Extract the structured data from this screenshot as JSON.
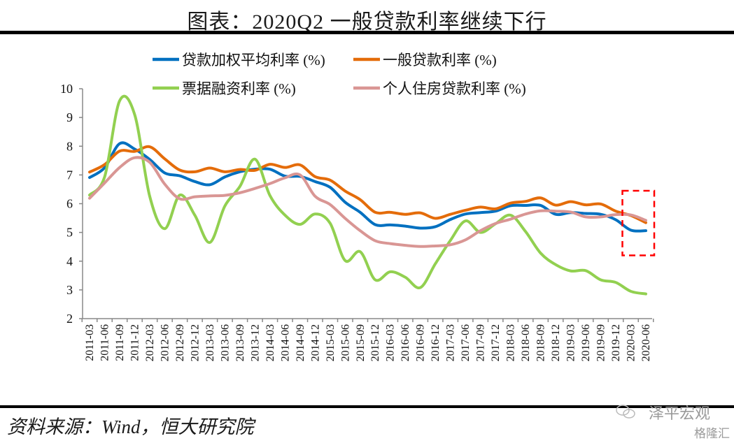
{
  "title": "图表：2020Q2 一般贷款利率继续下行",
  "source": "资料来源：Wind，恒大研究院",
  "watermark": {
    "brand": "泽平宏观",
    "sub": "格隆汇"
  },
  "highlight_box": {
    "from_category": "2020-03",
    "to_category": "2020-06",
    "y_range": [
      4.2,
      6.45
    ],
    "color": "#ff0000",
    "style": "dashed"
  },
  "chart_data": {
    "type": "line",
    "title": "图表：2020Q2 一般贷款利率继续下行",
    "xlabel": "",
    "ylabel": "",
    "ylim": [
      2,
      10
    ],
    "yticks": [
      2,
      3,
      4,
      5,
      6,
      7,
      8,
      9,
      10
    ],
    "grid": false,
    "legend_position": "top",
    "categories": [
      "2011-03",
      "2011-06",
      "2011-09",
      "2011-12",
      "2012-03",
      "2012-06",
      "2012-09",
      "2012-12",
      "2013-03",
      "2013-06",
      "2013-09",
      "2013-12",
      "2014-03",
      "2014-06",
      "2014-09",
      "2014-12",
      "2015-03",
      "2015-06",
      "2015-09",
      "2015-12",
      "2016-03",
      "2016-06",
      "2016-09",
      "2016-12",
      "2017-03",
      "2017-06",
      "2017-09",
      "2017-12",
      "2018-03",
      "2018-06",
      "2018-09",
      "2018-12",
      "2019-03",
      "2019-06",
      "2019-09",
      "2019-12",
      "2020-03",
      "2020-06"
    ],
    "series": [
      {
        "name": "贷款加权平均利率 (%)",
        "color": "#0070c0",
        "values": [
          6.91,
          7.25,
          8.09,
          7.9,
          7.54,
          7.07,
          6.97,
          6.77,
          6.66,
          6.93,
          7.11,
          7.2,
          7.2,
          6.96,
          6.95,
          6.77,
          6.57,
          6.05,
          5.7,
          5.27,
          5.26,
          5.22,
          5.15,
          5.2,
          5.45,
          5.64,
          5.69,
          5.74,
          5.93,
          5.94,
          5.94,
          5.63,
          5.69,
          5.66,
          5.63,
          5.44,
          5.08,
          5.06
        ]
      },
      {
        "name": "一般贷款利率 (%)",
        "color": "#e46c0a",
        "values": [
          7.1,
          7.36,
          7.83,
          7.82,
          7.98,
          7.56,
          7.17,
          7.11,
          7.24,
          7.11,
          7.19,
          7.16,
          7.37,
          7.26,
          7.35,
          6.94,
          6.82,
          6.44,
          6.14,
          5.7,
          5.7,
          5.63,
          5.68,
          5.49,
          5.63,
          5.77,
          5.88,
          5.82,
          6.02,
          6.08,
          6.2,
          5.95,
          6.07,
          5.96,
          5.99,
          5.74,
          5.59,
          5.34
        ]
      },
      {
        "name": "票据融资利率 (%)",
        "color": "#92d050",
        "values": [
          6.3,
          6.93,
          9.58,
          9.1,
          6.26,
          5.13,
          6.3,
          5.6,
          4.65,
          5.92,
          6.6,
          7.55,
          6.28,
          5.6,
          5.28,
          5.64,
          5.32,
          4.02,
          4.33,
          3.35,
          3.63,
          3.44,
          3.08,
          3.91,
          4.72,
          5.4,
          5.0,
          5.3,
          5.6,
          5.03,
          4.28,
          3.88,
          3.66,
          3.67,
          3.35,
          3.26,
          2.95,
          2.86
        ]
      },
      {
        "name": "个人住房贷款利率 (%)",
        "color": "#d99694",
        "values": [
          6.19,
          6.72,
          7.26,
          7.6,
          7.44,
          6.68,
          6.17,
          6.24,
          6.27,
          6.29,
          6.38,
          6.53,
          6.7,
          6.9,
          7.0,
          6.26,
          5.97,
          5.49,
          5.06,
          4.71,
          4.61,
          4.55,
          4.51,
          4.53,
          4.57,
          4.74,
          5.06,
          5.31,
          5.46,
          5.64,
          5.75,
          5.74,
          5.71,
          5.54,
          5.54,
          5.62,
          5.61,
          5.42
        ]
      }
    ]
  }
}
